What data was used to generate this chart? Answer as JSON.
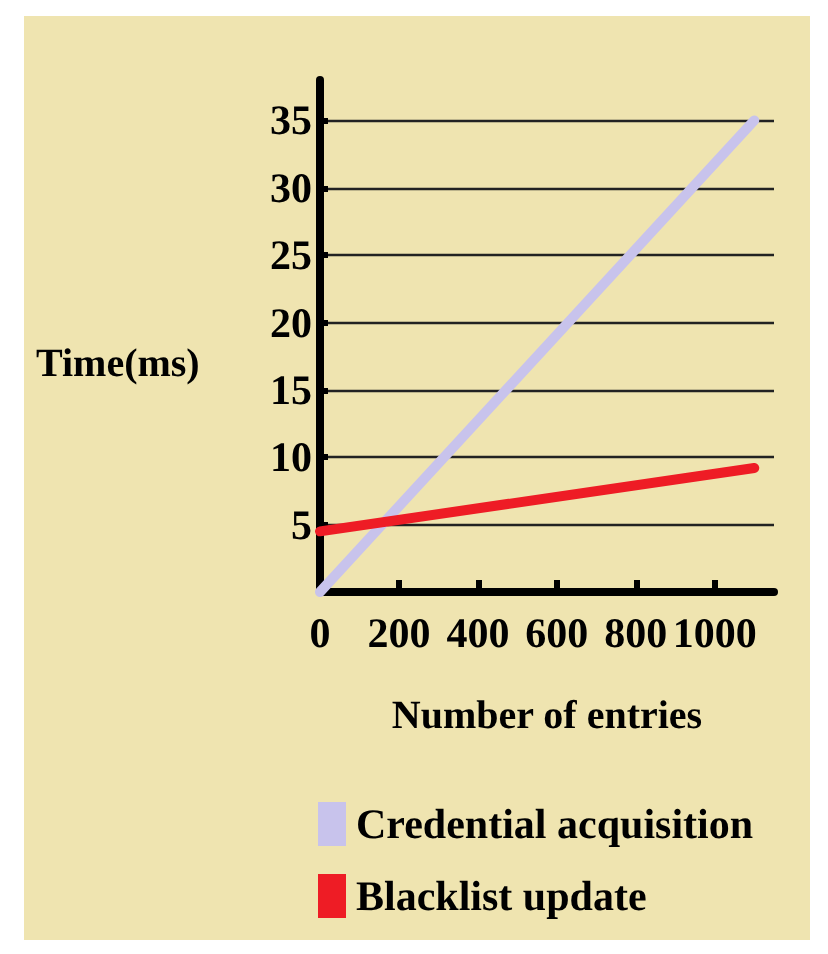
{
  "chart_data": {
    "type": "line",
    "xlabel": "Number of entries",
    "ylabel": "Time(ms)",
    "x": [
      0,
      1100
    ],
    "series": [
      {
        "name": "Credential acquisition",
        "color": "#c8c3ec",
        "values": [
          0,
          35
        ]
      },
      {
        "name": "Blacklist update",
        "color": "#ee1c25",
        "values": [
          4.5,
          9.2
        ]
      }
    ],
    "xlim": [
      0,
      1150
    ],
    "xticks": [
      0,
      200,
      400,
      600,
      800,
      1000
    ],
    "ylim": [
      0,
      38
    ],
    "yticks": [
      5,
      10,
      15,
      20,
      25,
      30,
      35
    ],
    "grid": "y",
    "legend": "bottom",
    "marker": "none",
    "line_style": "solid"
  }
}
